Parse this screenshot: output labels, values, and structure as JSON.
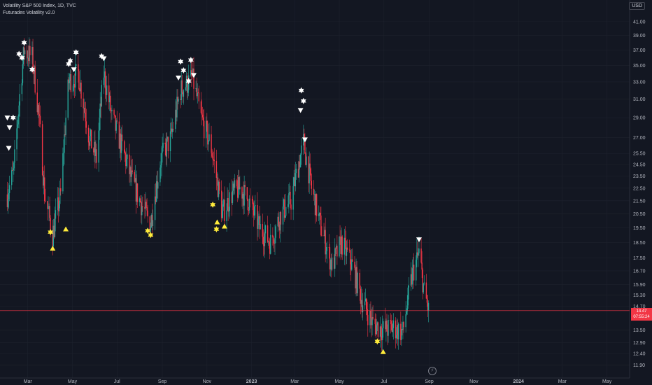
{
  "legend": {
    "title": "Volatility S&P 500 Index, 1D, TVC",
    "indicator": "Futurades Volatility v2.0"
  },
  "currency": "USD",
  "price_tag": {
    "value": "14.47",
    "countdown": "07:55:24"
  },
  "colors": {
    "background": "#131722",
    "up": "#26a69a",
    "down": "#f23645",
    "grid": "#1e222d",
    "buy_marker": "#ffeb3b",
    "sell_marker": "#ffffff"
  },
  "icons": [
    "tradingview-logo-icon"
  ],
  "chart_data": {
    "type": "candlestick",
    "title": "Volatility S&P 500 Index, 1D, TVC",
    "y_ticks": [
      "41.00",
      "39.00",
      "37.00",
      "35.00",
      "33.00",
      "31.00",
      "29.00",
      "27.00",
      "25.50",
      "24.50",
      "23.50",
      "22.50",
      "21.50",
      "20.50",
      "19.50",
      "18.50",
      "17.50",
      "16.70",
      "15.90",
      "15.30",
      "14.70",
      "13.50",
      "12.90",
      "12.40",
      "11.90"
    ],
    "x_ticks": [
      "Mar",
      "May",
      "Jul",
      "Sep",
      "Nov",
      "2023",
      "Mar",
      "May",
      "Jul",
      "Sep",
      "Nov",
      "2024",
      "Mar",
      "May"
    ],
    "ylim": [
      11.7,
      43
    ],
    "last_price": 14.47,
    "price_path": [
      [
        "2022-02-01",
        22
      ],
      [
        "2022-02-10",
        24
      ],
      [
        "2022-02-24",
        37
      ],
      [
        "2022-03-07",
        36
      ],
      [
        "2022-03-15",
        30
      ],
      [
        "2022-03-24",
        22
      ],
      [
        "2022-04-04",
        19
      ],
      [
        "2022-04-15",
        22
      ],
      [
        "2022-04-26",
        33
      ],
      [
        "2022-05-09",
        34
      ],
      [
        "2022-05-24",
        27
      ],
      [
        "2022-06-03",
        25
      ],
      [
        "2022-06-13",
        34
      ],
      [
        "2022-06-24",
        29
      ],
      [
        "2022-07-08",
        26
      ],
      [
        "2022-07-22",
        23
      ],
      [
        "2022-08-05",
        21
      ],
      [
        "2022-08-16",
        19.8
      ],
      [
        "2022-08-30",
        25
      ],
      [
        "2022-09-13",
        27
      ],
      [
        "2022-09-26",
        32
      ],
      [
        "2022-10-12",
        33.5
      ],
      [
        "2022-10-24",
        29
      ],
      [
        "2022-11-07",
        26
      ],
      [
        "2022-11-22",
        20.5
      ],
      [
        "2022-12-05",
        22
      ],
      [
        "2022-12-16",
        22.5
      ],
      [
        "2022-12-28",
        21.5
      ],
      [
        "2023-01-12",
        19.5
      ],
      [
        "2023-01-27",
        18.5
      ],
      [
        "2023-02-10",
        20.5
      ],
      [
        "2023-02-24",
        21.5
      ],
      [
        "2023-03-13",
        26.5
      ],
      [
        "2023-03-24",
        22.5
      ],
      [
        "2023-04-06",
        19.5
      ],
      [
        "2023-04-21",
        17
      ],
      [
        "2023-05-04",
        18.5
      ],
      [
        "2023-05-19",
        17
      ],
      [
        "2023-06-01",
        15
      ],
      [
        "2023-06-16",
        13.8
      ],
      [
        "2023-06-30",
        13.5
      ],
      [
        "2023-07-14",
        13.6
      ],
      [
        "2023-07-27",
        13.4
      ],
      [
        "2023-08-09",
        16.5
      ],
      [
        "2023-08-18",
        17.8
      ],
      [
        "2023-08-25",
        15.5
      ],
      [
        "2023-08-31",
        14.47
      ]
    ],
    "markers": [
      {
        "date": "2022-02-01",
        "type": "sell_triangle",
        "price": 29
      },
      {
        "date": "2022-02-03",
        "type": "sell_triangle",
        "price": 26
      },
      {
        "date": "2022-02-04",
        "type": "sell_triangle",
        "price": 28
      },
      {
        "date": "2022-02-09",
        "type": "sell_star",
        "price": 29
      },
      {
        "date": "2022-02-17",
        "type": "sell_star",
        "price": 36.5
      },
      {
        "date": "2022-02-21",
        "type": "sell_star",
        "price": 36
      },
      {
        "date": "2022-02-24",
        "type": "sell_star",
        "price": 38
      },
      {
        "date": "2022-03-07",
        "type": "sell_star",
        "price": 34.5
      },
      {
        "date": "2022-04-01",
        "type": "buy_star",
        "price": 19.2
      },
      {
        "date": "2022-04-04",
        "type": "buy_triangle",
        "price": 18.1
      },
      {
        "date": "2022-04-22",
        "type": "buy_triangle",
        "price": 19.4
      },
      {
        "date": "2022-04-26",
        "type": "sell_star",
        "price": 35.2
      },
      {
        "date": "2022-04-28",
        "type": "sell_star",
        "price": 35.6
      },
      {
        "date": "2022-05-03",
        "type": "sell_triangle",
        "price": 34.5
      },
      {
        "date": "2022-05-06",
        "type": "sell_star",
        "price": 36.7
      },
      {
        "date": "2022-06-10",
        "type": "sell_star",
        "price": 36.2
      },
      {
        "date": "2022-06-13",
        "type": "sell_triangle",
        "price": 35.9
      },
      {
        "date": "2022-08-12",
        "type": "buy_star",
        "price": 19.3
      },
      {
        "date": "2022-08-16",
        "type": "buy_star",
        "price": 19.0
      },
      {
        "date": "2022-09-23",
        "type": "sell_triangle",
        "price": 33.5
      },
      {
        "date": "2022-09-26",
        "type": "sell_star",
        "price": 35.5
      },
      {
        "date": "2022-09-30",
        "type": "sell_star",
        "price": 34.4
      },
      {
        "date": "2022-10-07",
        "type": "sell_star",
        "price": 33.1
      },
      {
        "date": "2022-10-10",
        "type": "sell_star",
        "price": 35.7
      },
      {
        "date": "2022-10-14",
        "type": "sell_triangle",
        "price": 33.8
      },
      {
        "date": "2022-11-09",
        "type": "buy_star",
        "price": 21.2
      },
      {
        "date": "2022-11-14",
        "type": "buy_star",
        "price": 19.4
      },
      {
        "date": "2022-11-15",
        "type": "buy_triangle",
        "price": 19.9
      },
      {
        "date": "2022-11-25",
        "type": "buy_triangle",
        "price": 19.6
      },
      {
        "date": "2023-03-10",
        "type": "sell_star",
        "price": 32.0
      },
      {
        "date": "2023-03-13",
        "type": "sell_star",
        "price": 30.8
      },
      {
        "date": "2023-03-09",
        "type": "sell_triangle",
        "price": 29.8
      },
      {
        "date": "2023-03-15",
        "type": "sell_triangle",
        "price": 26.8
      },
      {
        "date": "2023-06-22",
        "type": "buy_star",
        "price": 12.95
      },
      {
        "date": "2023-06-30",
        "type": "buy_triangle",
        "price": 12.47
      },
      {
        "date": "2023-08-18",
        "type": "sell_triangle",
        "price": 18.7
      }
    ]
  }
}
